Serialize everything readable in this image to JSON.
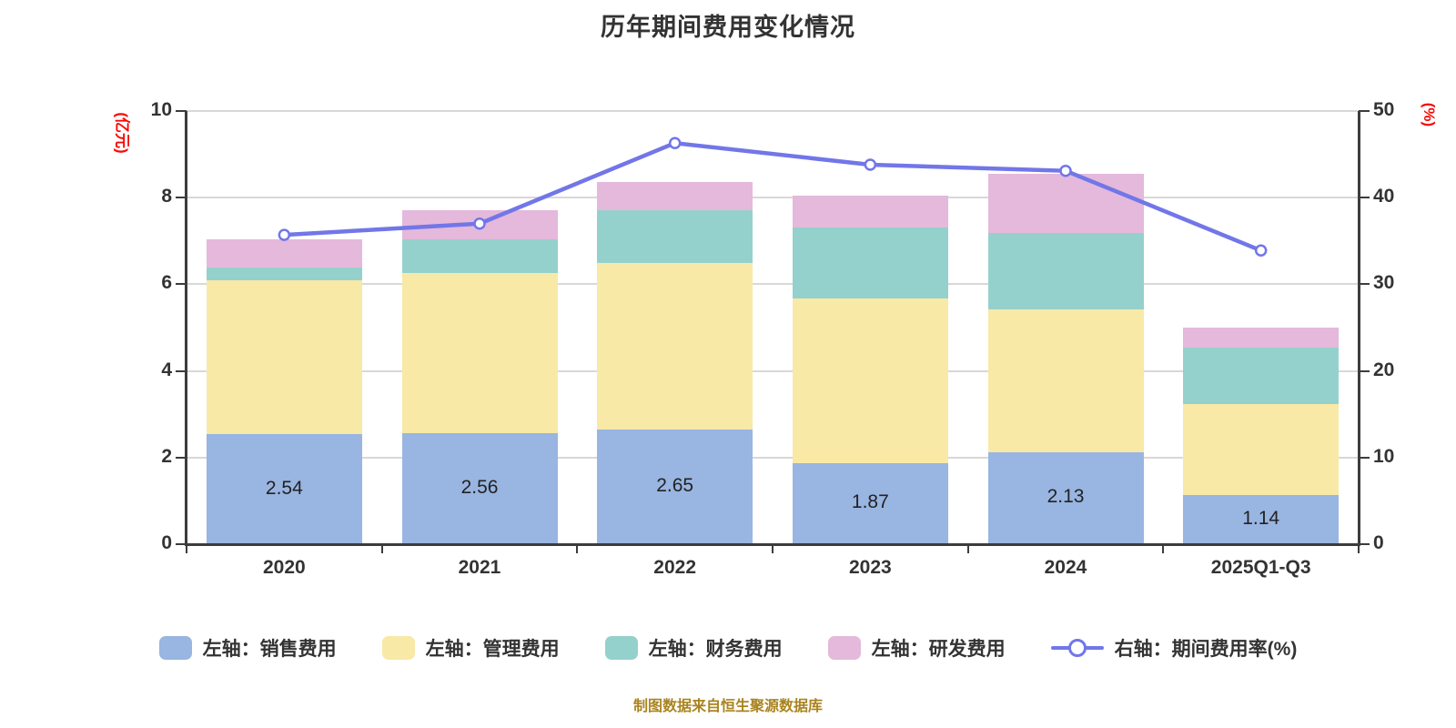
{
  "title": "历年期间费用变化情况",
  "footer": "制图数据来自恒生聚源数据库",
  "colors": {
    "sales_bar": "#99b5e1",
    "admin_bar": "#f8e9a7",
    "finance_bar": "#95d1cc",
    "rd_bar": "#e4b9db",
    "rate_line": "#7276e8",
    "grid_line": "#dbd7d7",
    "axis_line": "#3c3c3c",
    "text": "#333333",
    "bar_label_text": "#222222",
    "axis_unit_text": "#f70909",
    "footer_text": "#a9841f"
  },
  "chart_data": {
    "type": "bar",
    "subtype": "stacked-bar-with-line",
    "categories": [
      "2020",
      "2021",
      "2022",
      "2023",
      "2024",
      "2025Q1-Q3"
    ],
    "bar_series": [
      {
        "name": "左轴：销售费用",
        "color": "#99b5e1",
        "show_labels": true,
        "values": [
          2.54,
          2.56,
          2.65,
          1.87,
          2.13,
          1.14
        ]
      },
      {
        "name": "左轴：管理费用",
        "color": "#f8e9a7",
        "show_labels": false,
        "values": [
          3.55,
          3.7,
          3.85,
          3.8,
          3.3,
          2.1
        ]
      },
      {
        "name": "左轴：财务费用",
        "color": "#95d1cc",
        "show_labels": false,
        "values": [
          0.3,
          0.78,
          1.2,
          1.65,
          1.75,
          1.3
        ]
      },
      {
        "name": "左轴：研发费用",
        "color": "#e4b9db",
        "show_labels": false,
        "values": [
          0.65,
          0.67,
          0.67,
          0.72,
          1.37,
          0.45
        ]
      }
    ],
    "bar_labels": [
      "2.54",
      "2.56",
      "2.65",
      "1.87",
      "2.13",
      "1.14"
    ],
    "line_series": {
      "name": "右轴：期间费用率(%)",
      "color": "#7276e8",
      "values": [
        35.7,
        37.0,
        46.3,
        43.8,
        43.1,
        33.9
      ]
    },
    "left_axis": {
      "name": "(亿元)",
      "min": 0,
      "max": 10,
      "ticks": [
        0,
        2,
        4,
        6,
        8,
        10
      ]
    },
    "right_axis": {
      "name": "(%)",
      "min": 0,
      "max": 50,
      "ticks": [
        0,
        10,
        20,
        30,
        40,
        50
      ]
    },
    "grid": true,
    "legend_position": "bottom"
  }
}
